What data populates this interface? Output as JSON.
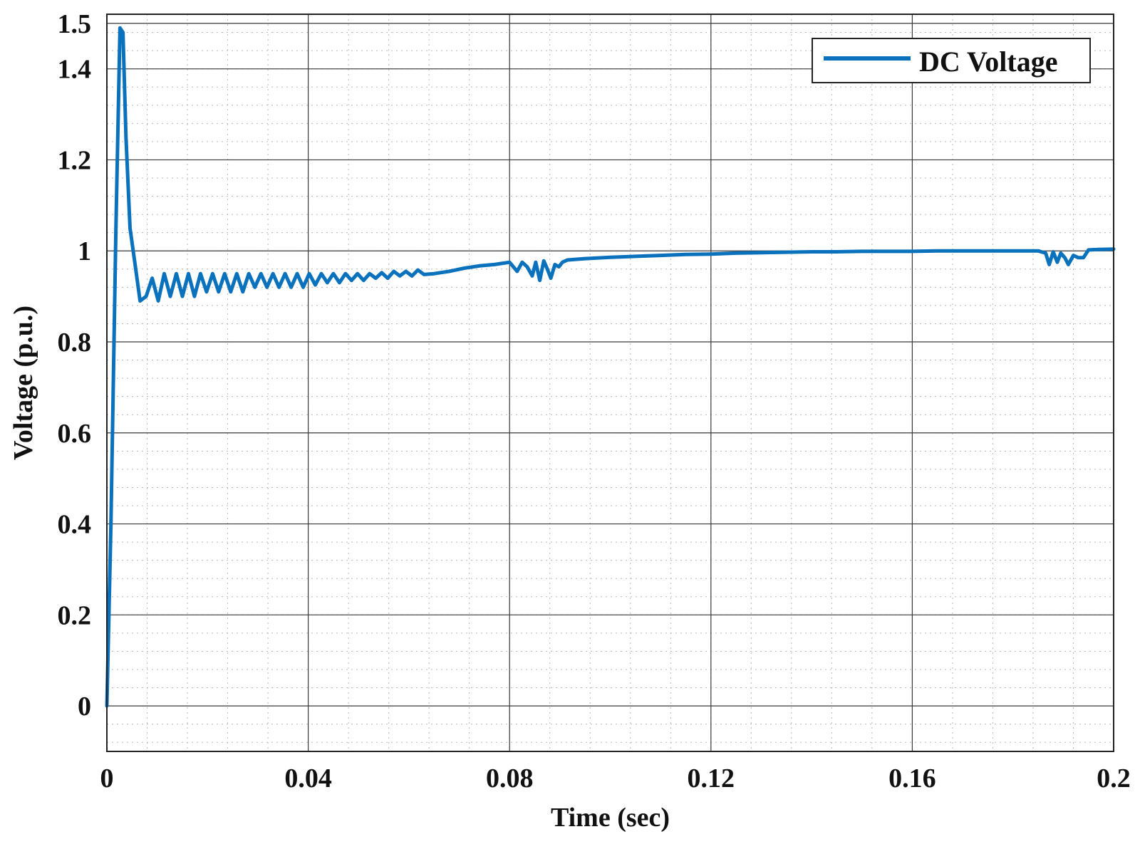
{
  "chart_data": {
    "type": "line",
    "title": "",
    "xlabel": "Time (sec)",
    "ylabel": "Voltage (p.u.)",
    "xlim": [
      0,
      0.2
    ],
    "ylim": [
      -0.1,
      1.52
    ],
    "xticks": [
      0,
      0.04,
      0.08,
      0.12,
      0.16,
      0.2
    ],
    "xtick_labels": [
      "0",
      "0.04",
      "0.08",
      "0.12",
      "0.16",
      "0.2"
    ],
    "yticks": [
      0,
      0.2,
      0.4,
      0.6,
      0.8,
      1,
      1.2,
      1.4,
      1.5
    ],
    "ytick_labels": [
      "0",
      "0.2",
      "0.4",
      "0.6",
      "0.8",
      "1",
      "1.2",
      "1.4",
      "1.5"
    ],
    "grid": true,
    "minor_grid": true,
    "legend_position": "top-right",
    "series": [
      {
        "name": "DC Voltage",
        "color": "#0a72bd",
        "x": [
          0,
          0.0008,
          0.0018,
          0.0026,
          0.0032,
          0.0038,
          0.0046,
          0.0056,
          0.0066,
          0.0078,
          0.009,
          0.0102,
          0.0114,
          0.0126,
          0.0138,
          0.015,
          0.0162,
          0.0174,
          0.0186,
          0.0198,
          0.021,
          0.0222,
          0.0234,
          0.0246,
          0.0258,
          0.027,
          0.0282,
          0.0294,
          0.0306,
          0.0318,
          0.033,
          0.0342,
          0.0354,
          0.0366,
          0.0378,
          0.039,
          0.0402,
          0.0414,
          0.0426,
          0.0438,
          0.045,
          0.0462,
          0.0474,
          0.0486,
          0.0498,
          0.051,
          0.0522,
          0.0534,
          0.0546,
          0.0558,
          0.057,
          0.0582,
          0.0594,
          0.0606,
          0.0618,
          0.063,
          0.065,
          0.068,
          0.071,
          0.074,
          0.077,
          0.08,
          0.0815,
          0.0825,
          0.0835,
          0.0845,
          0.0852,
          0.086,
          0.0868,
          0.0875,
          0.0882,
          0.089,
          0.0898,
          0.0905,
          0.0915,
          0.095,
          0.1,
          0.105,
          0.11,
          0.115,
          0.12,
          0.125,
          0.13,
          0.135,
          0.14,
          0.145,
          0.15,
          0.155,
          0.16,
          0.165,
          0.17,
          0.175,
          0.18,
          0.185,
          0.1865,
          0.1872,
          0.188,
          0.1888,
          0.1895,
          0.1903,
          0.191,
          0.192,
          0.193,
          0.194,
          0.195,
          0.197,
          0.2
        ],
        "y": [
          0,
          0.4,
          1.05,
          1.49,
          1.48,
          1.25,
          1.05,
          0.97,
          0.89,
          0.9,
          0.94,
          0.89,
          0.95,
          0.9,
          0.95,
          0.9,
          0.95,
          0.9,
          0.95,
          0.91,
          0.95,
          0.91,
          0.95,
          0.91,
          0.95,
          0.91,
          0.95,
          0.92,
          0.95,
          0.92,
          0.95,
          0.92,
          0.95,
          0.92,
          0.95,
          0.92,
          0.95,
          0.925,
          0.95,
          0.93,
          0.95,
          0.93,
          0.95,
          0.935,
          0.95,
          0.935,
          0.95,
          0.94,
          0.952,
          0.94,
          0.955,
          0.945,
          0.955,
          0.945,
          0.958,
          0.948,
          0.95,
          0.955,
          0.962,
          0.967,
          0.97,
          0.975,
          0.955,
          0.975,
          0.965,
          0.945,
          0.975,
          0.935,
          0.978,
          0.96,
          0.94,
          0.97,
          0.965,
          0.975,
          0.98,
          0.983,
          0.986,
          0.988,
          0.99,
          0.992,
          0.993,
          0.995,
          0.996,
          0.997,
          0.998,
          0.998,
          0.999,
          0.999,
          0.999,
          1,
          1,
          1,
          1,
          1,
          0.995,
          0.97,
          0.998,
          0.975,
          0.995,
          0.985,
          0.97,
          0.99,
          0.985,
          0.985,
          1.002,
          1.003,
          1.004
        ]
      }
    ]
  }
}
